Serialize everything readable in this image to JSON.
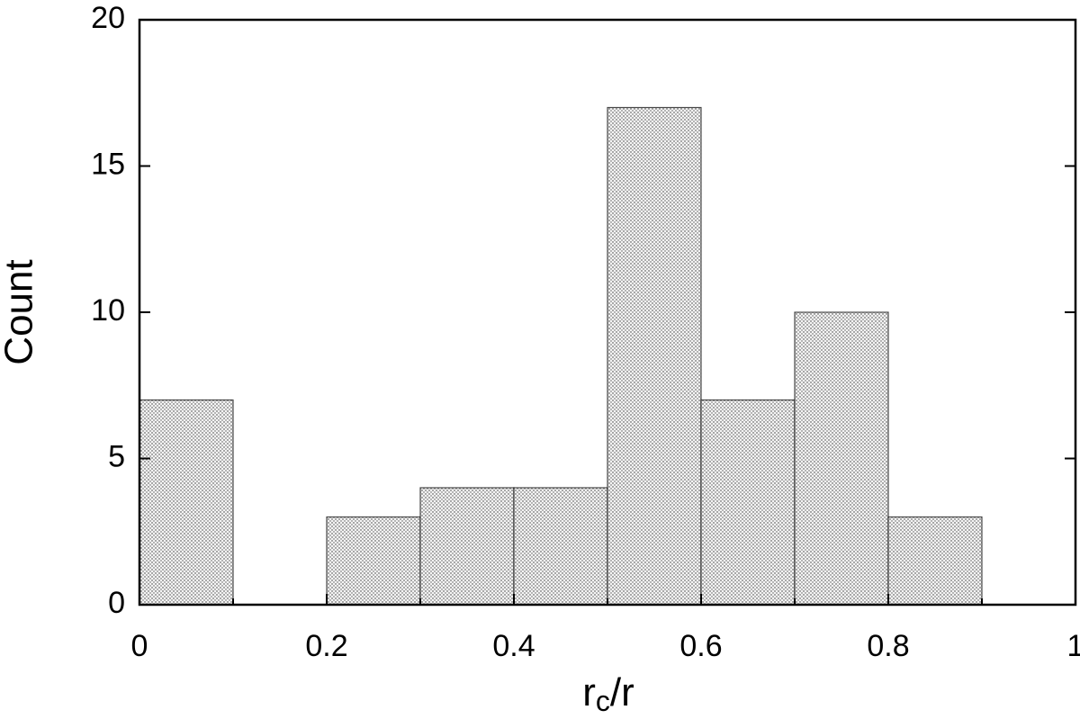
{
  "chart_data": {
    "type": "histogram",
    "xlabel": {
      "base": "r",
      "sub": "c",
      "rest": "/r"
    },
    "ylabel": "Count",
    "bins": [
      0,
      0.1,
      0.2,
      0.3,
      0.4,
      0.5,
      0.6,
      0.7,
      0.8,
      0.9
    ],
    "counts": [
      7,
      0,
      3,
      4,
      4,
      17,
      7,
      10,
      3
    ],
    "color": "#000000",
    "xlim": [
      0,
      1
    ],
    "ylim": [
      0,
      20
    ],
    "xticks": [
      0,
      0.2,
      0.4,
      0.6,
      0.8,
      1
    ],
    "xminorticks": [
      0.1,
      0.3,
      0.5,
      0.7,
      0.9
    ],
    "yticks": [
      0,
      5,
      10,
      15,
      20
    ]
  }
}
